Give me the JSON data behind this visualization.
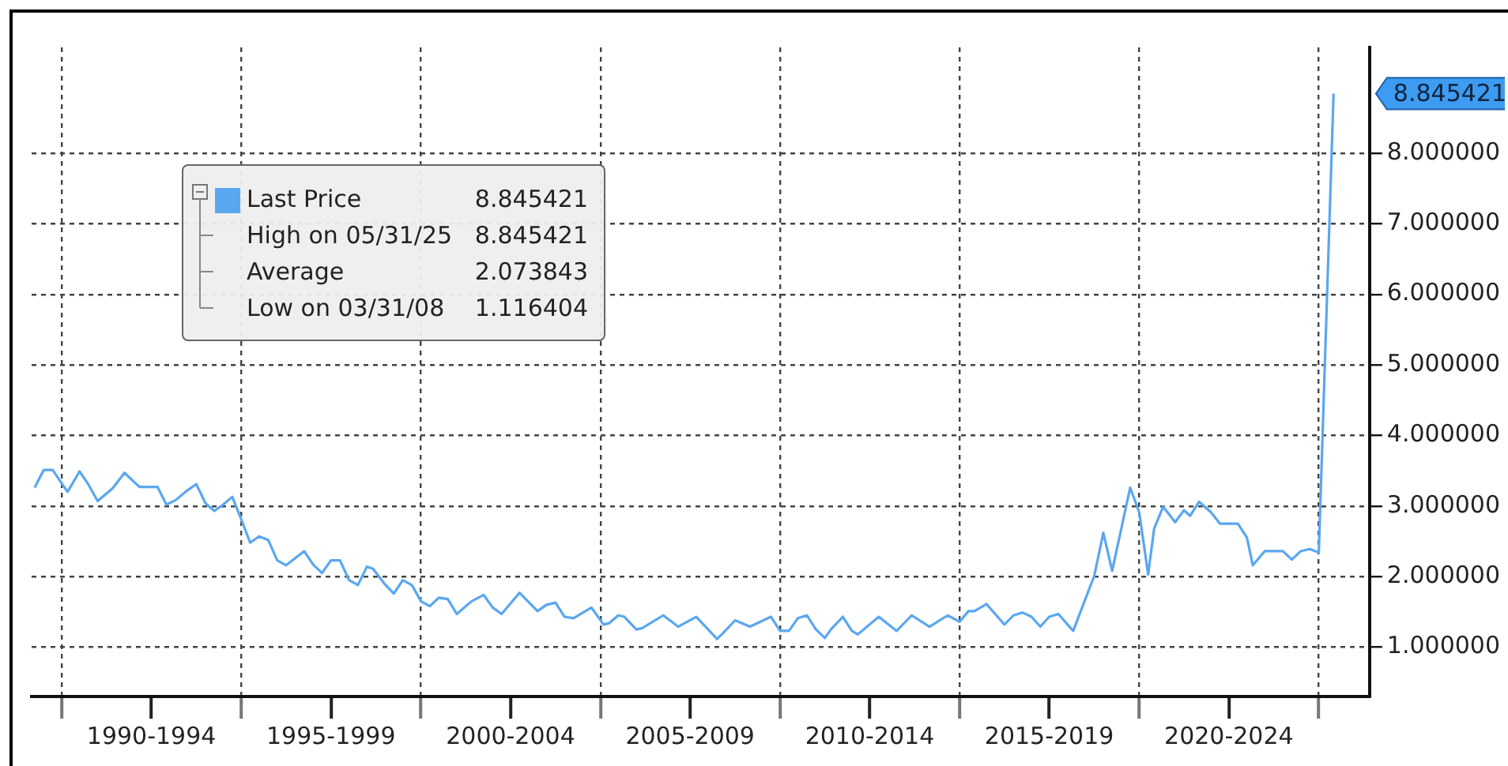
{
  "chart_data": {
    "type": "line",
    "x": [
      "1989-04",
      "1989-07",
      "1989-10",
      "1990-03",
      "1990-07",
      "1990-10",
      "1991-01",
      "1991-06",
      "1991-10",
      "1992-03",
      "1992-09",
      "1992-12",
      "1993-03",
      "1993-07",
      "1993-10",
      "1994-01",
      "1994-04",
      "1994-07",
      "1994-10",
      "1995-01",
      "1995-04",
      "1995-07",
      "1995-10",
      "1996-01",
      "1996-04",
      "1996-10",
      "1997-01",
      "1997-04",
      "1997-07",
      "1997-10",
      "1998-01",
      "1998-04",
      "1998-07",
      "1998-09",
      "1999-01",
      "1999-04",
      "1999-07",
      "1999-10",
      "2000-01",
      "2000-04",
      "2000-07",
      "2000-10",
      "2001-01",
      "2001-06",
      "2001-10",
      "2002-01",
      "2002-04",
      "2002-10",
      "2003-04",
      "2003-07",
      "2003-10",
      "2004-01",
      "2004-04",
      "2004-10",
      "2005-02",
      "2005-04",
      "2005-07",
      "2005-09",
      "2006-01",
      "2006-03",
      "2006-10",
      "2007-03",
      "2007-09",
      "2008-03-31",
      "2008-06",
      "2008-10",
      "2009-03",
      "2009-10",
      "2010-01",
      "2010-04",
      "2010-07",
      "2010-10",
      "2011-01",
      "2011-04",
      "2011-06",
      "2011-10",
      "2012-01",
      "2012-03",
      "2012-10",
      "2013-04",
      "2013-09",
      "2014-03",
      "2014-09",
      "2015-01",
      "2015-04",
      "2015-06",
      "2015-10",
      "2016-04",
      "2016-07",
      "2016-10",
      "2017-01",
      "2017-04",
      "2017-07",
      "2017-10",
      "2018-03",
      "2018-10",
      "2019-01",
      "2019-04",
      "2019-10",
      "2020-01",
      "2020-04",
      "2020-06",
      "2020-09",
      "2021-01",
      "2021-04",
      "2021-06",
      "2021-09",
      "2022-01",
      "2022-04",
      "2022-10",
      "2023-01",
      "2023-03",
      "2023-07",
      "2024-01",
      "2024-04",
      "2024-07",
      "2024-10",
      "2025-01",
      "2025-05-31"
    ],
    "series": [
      {
        "name": "Last Price",
        "color": "#5aa7f0",
        "values": [
          3.26,
          3.51,
          3.51,
          3.2,
          3.49,
          3.3,
          3.07,
          3.25,
          3.47,
          3.27,
          3.27,
          3.02,
          3.08,
          3.22,
          3.31,
          3.04,
          2.93,
          3.02,
          3.13,
          2.81,
          2.48,
          2.57,
          2.52,
          2.23,
          2.16,
          2.36,
          2.17,
          2.05,
          2.23,
          2.23,
          1.95,
          1.88,
          2.14,
          2.11,
          1.89,
          1.76,
          1.95,
          1.88,
          1.65,
          1.58,
          1.7,
          1.68,
          1.47,
          1.65,
          1.74,
          1.56,
          1.47,
          1.77,
          1.51,
          1.6,
          1.63,
          1.43,
          1.41,
          1.56,
          1.32,
          1.34,
          1.45,
          1.43,
          1.25,
          1.27,
          1.45,
          1.29,
          1.43,
          1.116404,
          1.2,
          1.38,
          1.29,
          1.43,
          1.23,
          1.23,
          1.41,
          1.45,
          1.25,
          1.13,
          1.25,
          1.43,
          1.23,
          1.18,
          1.43,
          1.23,
          1.45,
          1.29,
          1.45,
          1.36,
          1.51,
          1.51,
          1.61,
          1.32,
          1.45,
          1.49,
          1.43,
          1.29,
          1.43,
          1.47,
          1.23,
          2.01,
          2.62,
          2.08,
          3.26,
          2.91,
          2.03,
          2.68,
          2.99,
          2.77,
          2.94,
          2.86,
          3.06,
          2.91,
          2.75,
          2.75,
          2.55,
          2.16,
          2.36,
          2.36,
          2.24,
          2.36,
          2.39,
          2.34,
          8.845421
        ]
      }
    ],
    "xlim": [
      "1989-03",
      "2026-06"
    ],
    "xticks": [
      {
        "value": "1990-01-01",
        "label": null
      },
      {
        "value": "1992-07-01",
        "label": "1990-1994"
      },
      {
        "value": "1995-01-01",
        "label": null
      },
      {
        "value": "1997-07-01",
        "label": "1995-1999"
      },
      {
        "value": "2000-01-01",
        "label": null
      },
      {
        "value": "2002-07-01",
        "label": "2000-2004"
      },
      {
        "value": "2005-01-01",
        "label": null
      },
      {
        "value": "2007-07-01",
        "label": "2005-2009"
      },
      {
        "value": "2010-01-01",
        "label": null
      },
      {
        "value": "2012-07-01",
        "label": "2010-2014"
      },
      {
        "value": "2015-01-01",
        "label": null
      },
      {
        "value": "2017-07-01",
        "label": "2015-2019"
      },
      {
        "value": "2020-01-01",
        "label": null
      },
      {
        "value": "2022-07-01",
        "label": "2020-2024"
      },
      {
        "value": "2025-01-01",
        "label": null
      }
    ],
    "ylim": [
      0.3,
      9.5
    ],
    "yticks": [
      {
        "value": 1,
        "label": "1.000000"
      },
      {
        "value": 2,
        "label": "2.000000"
      },
      {
        "value": 3,
        "label": "3.000000"
      },
      {
        "value": 4,
        "label": "4.000000"
      },
      {
        "value": 5,
        "label": "5.000000"
      },
      {
        "value": 6,
        "label": "6.000000"
      },
      {
        "value": 7,
        "label": "7.000000"
      },
      {
        "value": 8,
        "label": "8.000000"
      }
    ],
    "grid": true,
    "legend": "top left",
    "line_style": "solid",
    "marker": "none",
    "annotations": [
      "8.845421",
      "High on 05/31/25 8.845421",
      "Average 2.073843",
      "Low on 03/31/08 1.116404",
      {
        "text": "8.845421",
        "x": "2025-05-31",
        "y": 8.845421
      }
    ]
  }
}
